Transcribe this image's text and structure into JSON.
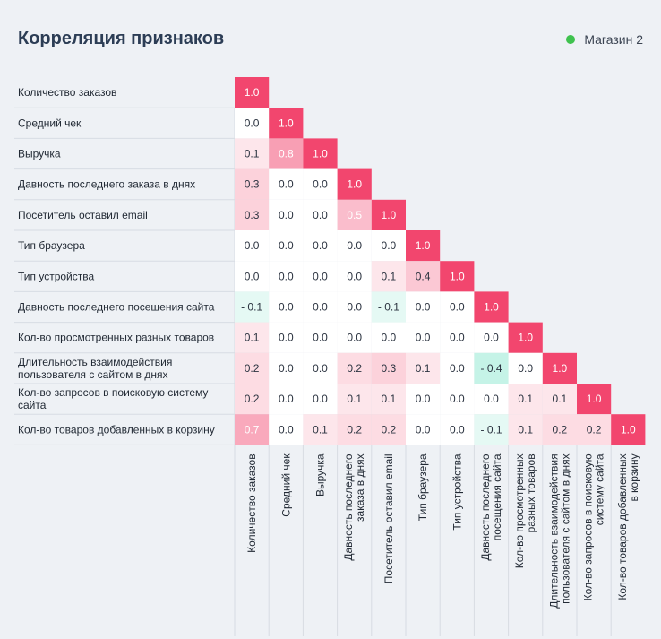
{
  "header": {
    "title": "Корреляция признаков",
    "legend_label": "Магазин 2",
    "legend_color": "#3fc24e"
  },
  "chart_data": {
    "type": "heatmap",
    "title": "Корреляция признаков",
    "legend": [
      "Магазин 2"
    ],
    "row_labels": [
      [
        "Количество заказов"
      ],
      [
        "Средний чек"
      ],
      [
        "Выручка"
      ],
      [
        "Давность последнего заказа в днях"
      ],
      [
        "Посетитель оставил email"
      ],
      [
        "Тип браузера"
      ],
      [
        "Тип устройства"
      ],
      [
        "Давность последнего посещения сайта"
      ],
      [
        "Кол-во просмотренных разных товаров"
      ],
      [
        "Длительность взаимодействия",
        "пользователя с сайтом в днях"
      ],
      [
        "Кол-во запросов в поисковую систему",
        "сайта"
      ],
      [
        "Кол-во товаров добавленных в корзину"
      ]
    ],
    "col_labels": [
      [
        "Количество заказов"
      ],
      [
        "Средний чек"
      ],
      [
        "Выручка"
      ],
      [
        "Давность последнего",
        "заказа в днях"
      ],
      [
        "Посетитель оставил email"
      ],
      [
        "Тип браузера"
      ],
      [
        "Тип устройства"
      ],
      [
        "Давность последнего",
        "посещения сайта"
      ],
      [
        "Кол-во просмотренных",
        "разных товаров"
      ],
      [
        "Длительность взаимодействия",
        "пользователя с сайтом в днях"
      ],
      [
        "Кол-во запросов в поисковую",
        "систему сайта"
      ],
      [
        "Кол-во товаров добавленных",
        "в корзину"
      ]
    ],
    "matrix": [
      [
        "1.0"
      ],
      [
        "0.0",
        "1.0"
      ],
      [
        "0.1",
        "0.8",
        "1.0"
      ],
      [
        "0.3",
        "0.0",
        "0.0",
        "1.0"
      ],
      [
        "0.3",
        "0.0",
        "0.0",
        "0.5",
        "1.0"
      ],
      [
        "0.0",
        "0.0",
        "0.0",
        "0.0",
        "0.0",
        "1.0"
      ],
      [
        "0.0",
        "0.0",
        "0.0",
        "0.0",
        "0.1",
        "0.4",
        "1.0"
      ],
      [
        "- 0.1",
        "0.0",
        "0.0",
        "0.0",
        "- 0.1",
        "0.0",
        "0.0",
        "1.0"
      ],
      [
        "0.1",
        "0.0",
        "0.0",
        "0.0",
        "0.0",
        "0.0",
        "0.0",
        "0.0",
        "1.0"
      ],
      [
        "0.2",
        "0.0",
        "0.0",
        "0.2",
        "0.3",
        "0.1",
        "0.0",
        "- 0.4",
        "0.0",
        "1.0"
      ],
      [
        "0.2",
        "0.0",
        "0.0",
        "0.1",
        "0.1",
        "0.0",
        "0.0",
        "0.0",
        "0.1",
        "0.1",
        "1.0"
      ],
      [
        "0.7",
        "0.0",
        "0.1",
        "0.2",
        "0.2",
        "0.0",
        "0.0",
        "- 0.1",
        "0.1",
        "0.2",
        "0.2",
        "1.0"
      ]
    ],
    "value_range": [
      -1,
      1
    ],
    "positive_color": "#f2466e",
    "negative_color": "#3fd6b0"
  }
}
